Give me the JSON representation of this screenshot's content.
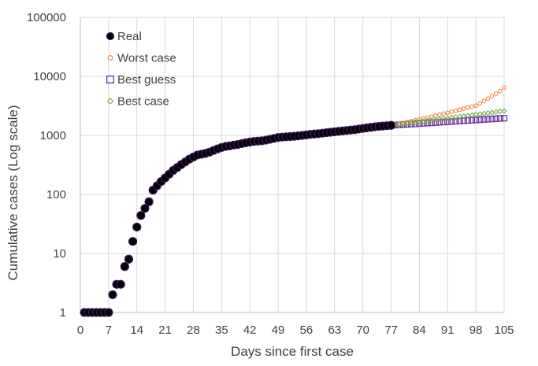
{
  "chart_data": {
    "type": "scatter",
    "title": "",
    "xlabel": "Days since first case",
    "ylabel": "Cumulative cases (Log scale)",
    "xlim": [
      0,
      105
    ],
    "ylim": [
      1,
      100000
    ],
    "yscale": "log",
    "grid": "on",
    "legend_position": "top-left",
    "x_ticks": [
      0,
      7,
      14,
      21,
      28,
      35,
      42,
      49,
      56,
      63,
      70,
      77,
      84,
      91,
      98,
      105
    ],
    "x_tick_labels": [
      "0",
      "7",
      "14",
      "21",
      "28",
      "35",
      "42",
      "49",
      "56",
      "63",
      "70",
      "77",
      "84",
      "91",
      "98",
      "105"
    ],
    "y_ticks": [
      1,
      10,
      100,
      1000,
      10000,
      100000
    ],
    "y_tick_labels": [
      "1",
      "10",
      "100",
      "1000",
      "10000",
      "100000"
    ],
    "series": [
      {
        "name": "Real",
        "marker": "filled-circle",
        "color": "#000000",
        "x": [
          1,
          2,
          3,
          4,
          5,
          6,
          7,
          8,
          9,
          10,
          11,
          12,
          13,
          14,
          15,
          16,
          17,
          18,
          19,
          20,
          21,
          22,
          23,
          24,
          25,
          26,
          27,
          28,
          29,
          30,
          31,
          32,
          33,
          34,
          35,
          36,
          37,
          38,
          39,
          40,
          41,
          42,
          43,
          44,
          45,
          46,
          47,
          48,
          49,
          50,
          51,
          52,
          53,
          54,
          55,
          56,
          57,
          58,
          59,
          60,
          61,
          62,
          63,
          64,
          65,
          66,
          67,
          68,
          69,
          70,
          71,
          72,
          73,
          74,
          75,
          76,
          77
        ],
        "y": [
          1,
          1,
          1,
          1,
          1,
          1,
          1,
          2,
          3,
          3,
          6,
          8,
          16,
          28,
          44,
          58,
          75,
          118,
          140,
          165,
          190,
          220,
          255,
          285,
          320,
          355,
          395,
          430,
          465,
          480,
          495,
          520,
          555,
          590,
          625,
          650,
          665,
          685,
          700,
          725,
          750,
          770,
          790,
          800,
          810,
          830,
          860,
          890,
          920,
          935,
          945,
          955,
          965,
          980,
          1000,
          1020,
          1040,
          1055,
          1070,
          1090,
          1110,
          1130,
          1150,
          1170,
          1190,
          1210,
          1230,
          1250,
          1280,
          1310,
          1340,
          1370,
          1400,
          1420,
          1440,
          1460,
          1480
        ]
      },
      {
        "name": "Worst case",
        "marker": "open-circle",
        "color": "#ed7d31",
        "x": [
          1,
          2,
          3,
          4,
          5,
          6,
          7,
          8,
          9,
          10,
          11,
          12,
          13,
          14,
          15,
          16,
          17,
          18,
          19,
          20,
          21,
          22,
          23,
          24,
          25,
          26,
          27,
          28,
          29,
          30,
          31,
          32,
          33,
          34,
          35,
          36,
          37,
          38,
          39,
          40,
          41,
          42,
          43,
          44,
          45,
          46,
          47,
          48,
          49,
          50,
          51,
          52,
          53,
          54,
          55,
          56,
          57,
          58,
          59,
          60,
          61,
          62,
          63,
          64,
          65,
          66,
          67,
          68,
          69,
          70,
          71,
          72,
          73,
          74,
          75,
          76,
          77,
          78,
          79,
          80,
          81,
          82,
          83,
          84,
          85,
          86,
          87,
          88,
          89,
          90,
          91,
          92,
          93,
          94,
          95,
          96,
          97,
          98,
          99,
          100,
          101,
          102,
          103,
          104,
          105
        ],
        "y": [
          1,
          1,
          1,
          1,
          1,
          1,
          1,
          2,
          3,
          3,
          6,
          8,
          16,
          28,
          44,
          58,
          75,
          118,
          140,
          165,
          190,
          220,
          255,
          285,
          320,
          355,
          395,
          430,
          465,
          480,
          495,
          520,
          555,
          590,
          625,
          650,
          665,
          685,
          700,
          725,
          750,
          770,
          790,
          800,
          810,
          830,
          860,
          890,
          920,
          935,
          945,
          955,
          965,
          980,
          1000,
          1020,
          1040,
          1055,
          1070,
          1090,
          1110,
          1130,
          1150,
          1170,
          1190,
          1210,
          1230,
          1250,
          1280,
          1310,
          1340,
          1370,
          1400,
          1420,
          1440,
          1460,
          1480,
          1530,
          1581,
          1634,
          1689,
          1746,
          1804,
          1865,
          1927,
          1992,
          2071,
          2154,
          2240,
          2330,
          2423,
          2520,
          2621,
          2726,
          2835,
          2948,
          3066,
          3189,
          3479,
          3826,
          4209,
          4630,
          5093,
          5603,
          6450
        ]
      },
      {
        "name": "Best guess",
        "marker": "open-square",
        "color": "#7030a0",
        "x": [
          1,
          2,
          3,
          4,
          5,
          6,
          7,
          8,
          9,
          10,
          11,
          12,
          13,
          14,
          15,
          16,
          17,
          18,
          19,
          20,
          21,
          22,
          23,
          24,
          25,
          26,
          27,
          28,
          29,
          30,
          31,
          32,
          33,
          34,
          35,
          36,
          37,
          38,
          39,
          40,
          41,
          42,
          43,
          44,
          45,
          46,
          47,
          48,
          49,
          50,
          51,
          52,
          53,
          54,
          55,
          56,
          57,
          58,
          59,
          60,
          61,
          62,
          63,
          64,
          65,
          66,
          67,
          68,
          69,
          70,
          71,
          72,
          73,
          74,
          75,
          76,
          77,
          78,
          79,
          80,
          81,
          82,
          83,
          84,
          85,
          86,
          87,
          88,
          89,
          90,
          91,
          92,
          93,
          94,
          95,
          96,
          97,
          98,
          99,
          100,
          101,
          102,
          103,
          104,
          105
        ],
        "y": [
          1,
          1,
          1,
          1,
          1,
          1,
          1,
          2,
          3,
          3,
          6,
          8,
          16,
          28,
          44,
          58,
          75,
          118,
          140,
          165,
          190,
          220,
          255,
          285,
          320,
          355,
          395,
          430,
          465,
          480,
          495,
          520,
          555,
          590,
          625,
          650,
          665,
          685,
          700,
          725,
          750,
          770,
          790,
          800,
          810,
          830,
          860,
          890,
          920,
          935,
          945,
          955,
          965,
          980,
          1000,
          1020,
          1040,
          1055,
          1070,
          1090,
          1110,
          1130,
          1150,
          1170,
          1190,
          1210,
          1230,
          1250,
          1280,
          1310,
          1340,
          1370,
          1400,
          1420,
          1440,
          1460,
          1480,
          1495,
          1510,
          1525,
          1540,
          1555,
          1571,
          1587,
          1603,
          1619,
          1635,
          1651,
          1668,
          1685,
          1702,
          1719,
          1736,
          1753,
          1771,
          1788,
          1806,
          1824,
          1843,
          1861,
          1880,
          1899,
          1918,
          1937,
          1956
        ]
      },
      {
        "name": "Best case",
        "marker": "open-diamond",
        "color": "#70ad47",
        "x": [
          1,
          2,
          3,
          4,
          5,
          6,
          7,
          8,
          9,
          10,
          11,
          12,
          13,
          14,
          15,
          16,
          17,
          18,
          19,
          20,
          21,
          22,
          23,
          24,
          25,
          26,
          27,
          28,
          29,
          30,
          31,
          32,
          33,
          34,
          35,
          36,
          37,
          38,
          39,
          40,
          41,
          42,
          43,
          44,
          45,
          46,
          47,
          48,
          49,
          50,
          51,
          52,
          53,
          54,
          55,
          56,
          57,
          58,
          59,
          60,
          61,
          62,
          63,
          64,
          65,
          66,
          67,
          68,
          69,
          70,
          71,
          72,
          73,
          74,
          75,
          76,
          77,
          78,
          79,
          80,
          81,
          82,
          83,
          84,
          85,
          86,
          87,
          88,
          89,
          90,
          91,
          92,
          93,
          94,
          95,
          96,
          97,
          98,
          99,
          100,
          101,
          102,
          103,
          104,
          105
        ],
        "y": [
          1,
          1,
          1,
          1,
          1,
          1,
          1,
          2,
          3,
          3,
          6,
          8,
          16,
          28,
          44,
          58,
          75,
          118,
          140,
          165,
          190,
          220,
          255,
          285,
          320,
          355,
          395,
          430,
          465,
          480,
          495,
          520,
          555,
          590,
          625,
          650,
          665,
          685,
          700,
          725,
          750,
          770,
          790,
          800,
          810,
          830,
          860,
          890,
          920,
          935,
          945,
          955,
          965,
          980,
          1000,
          1020,
          1040,
          1055,
          1070,
          1090,
          1110,
          1130,
          1150,
          1170,
          1190,
          1210,
          1230,
          1250,
          1280,
          1310,
          1340,
          1370,
          1400,
          1420,
          1440,
          1460,
          1480,
          1510,
          1541,
          1572,
          1604,
          1636,
          1669,
          1703,
          1737,
          1772,
          1808,
          1845,
          1882,
          1920,
          1959,
          1999,
          2039,
          2080,
          2122,
          2165,
          2209,
          2254,
          2299,
          2346,
          2393,
          2441,
          2490,
          2541,
          2592
        ]
      }
    ]
  }
}
